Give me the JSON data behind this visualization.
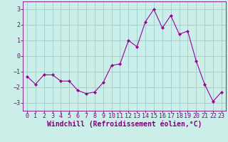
{
  "x": [
    0,
    1,
    2,
    3,
    4,
    5,
    6,
    7,
    8,
    9,
    10,
    11,
    12,
    13,
    14,
    15,
    16,
    17,
    18,
    19,
    20,
    21,
    22,
    23
  ],
  "y": [
    -1.3,
    -1.8,
    -1.2,
    -1.2,
    -1.6,
    -1.6,
    -2.2,
    -2.4,
    -2.3,
    -1.7,
    -0.6,
    -0.5,
    1.0,
    0.6,
    2.2,
    3.0,
    1.8,
    2.6,
    1.4,
    1.6,
    -0.3,
    -1.8,
    -2.9,
    -2.3
  ],
  "line_color": "#990099",
  "marker": "D",
  "marker_size": 2.2,
  "bg_color": "#cceee8",
  "grid_color": "#99cccc",
  "xlabel": "Windchill (Refroidissement éolien,°C)",
  "xlabel_color": "#800080",
  "tick_color": "#800080",
  "spine_color": "#800080",
  "ylim": [
    -3.5,
    3.5
  ],
  "xlim": [
    -0.5,
    23.5
  ],
  "yticks": [
    -3,
    -2,
    -1,
    0,
    1,
    2,
    3
  ],
  "xticks": [
    0,
    1,
    2,
    3,
    4,
    5,
    6,
    7,
    8,
    9,
    10,
    11,
    12,
    13,
    14,
    15,
    16,
    17,
    18,
    19,
    20,
    21,
    22,
    23
  ],
  "tick_fontsize": 6,
  "xlabel_fontsize": 7
}
